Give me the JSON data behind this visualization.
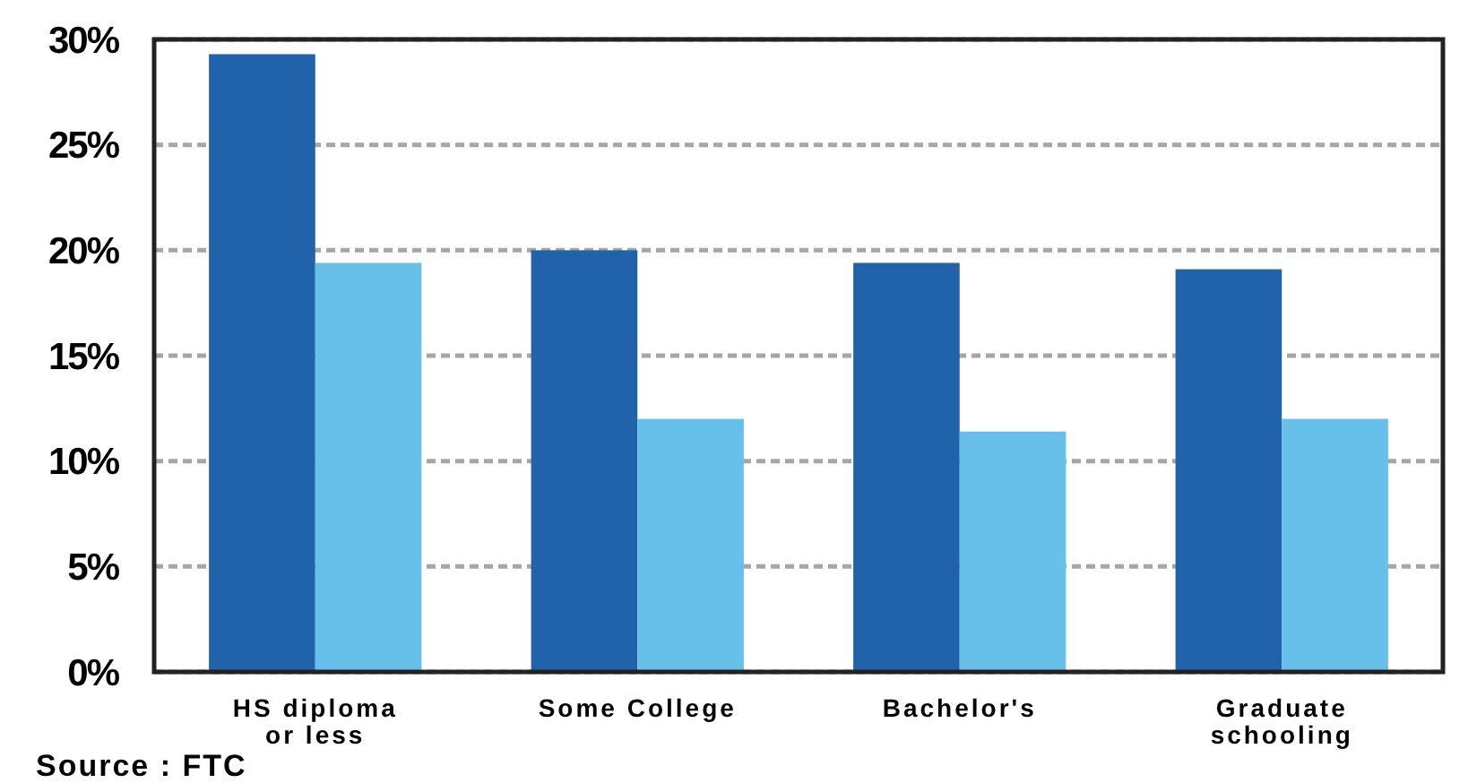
{
  "chart_data": {
    "type": "bar",
    "categories": [
      "HS diploma\nor less",
      "Some College",
      "Bachelor's",
      "Graduate\nschooling"
    ],
    "series": [
      {
        "color": "#2163ab",
        "values": [
          29.3,
          20.0,
          19.4,
          19.1
        ]
      },
      {
        "color": "#67c0ea",
        "values": [
          19.4,
          12.0,
          11.4,
          12.0
        ]
      }
    ],
    "ylim": [
      0,
      30
    ],
    "yticks": [
      {
        "value": 0,
        "label": "0%"
      },
      {
        "value": 5,
        "label": "5%"
      },
      {
        "value": 10,
        "label": "10%"
      },
      {
        "value": 15,
        "label": "15%"
      },
      {
        "value": 20,
        "label": "20%"
      },
      {
        "value": 25,
        "label": "25%"
      },
      {
        "value": 30,
        "label": "30%"
      }
    ],
    "grid": "y",
    "annotations": [
      "Source : FTC"
    ]
  }
}
